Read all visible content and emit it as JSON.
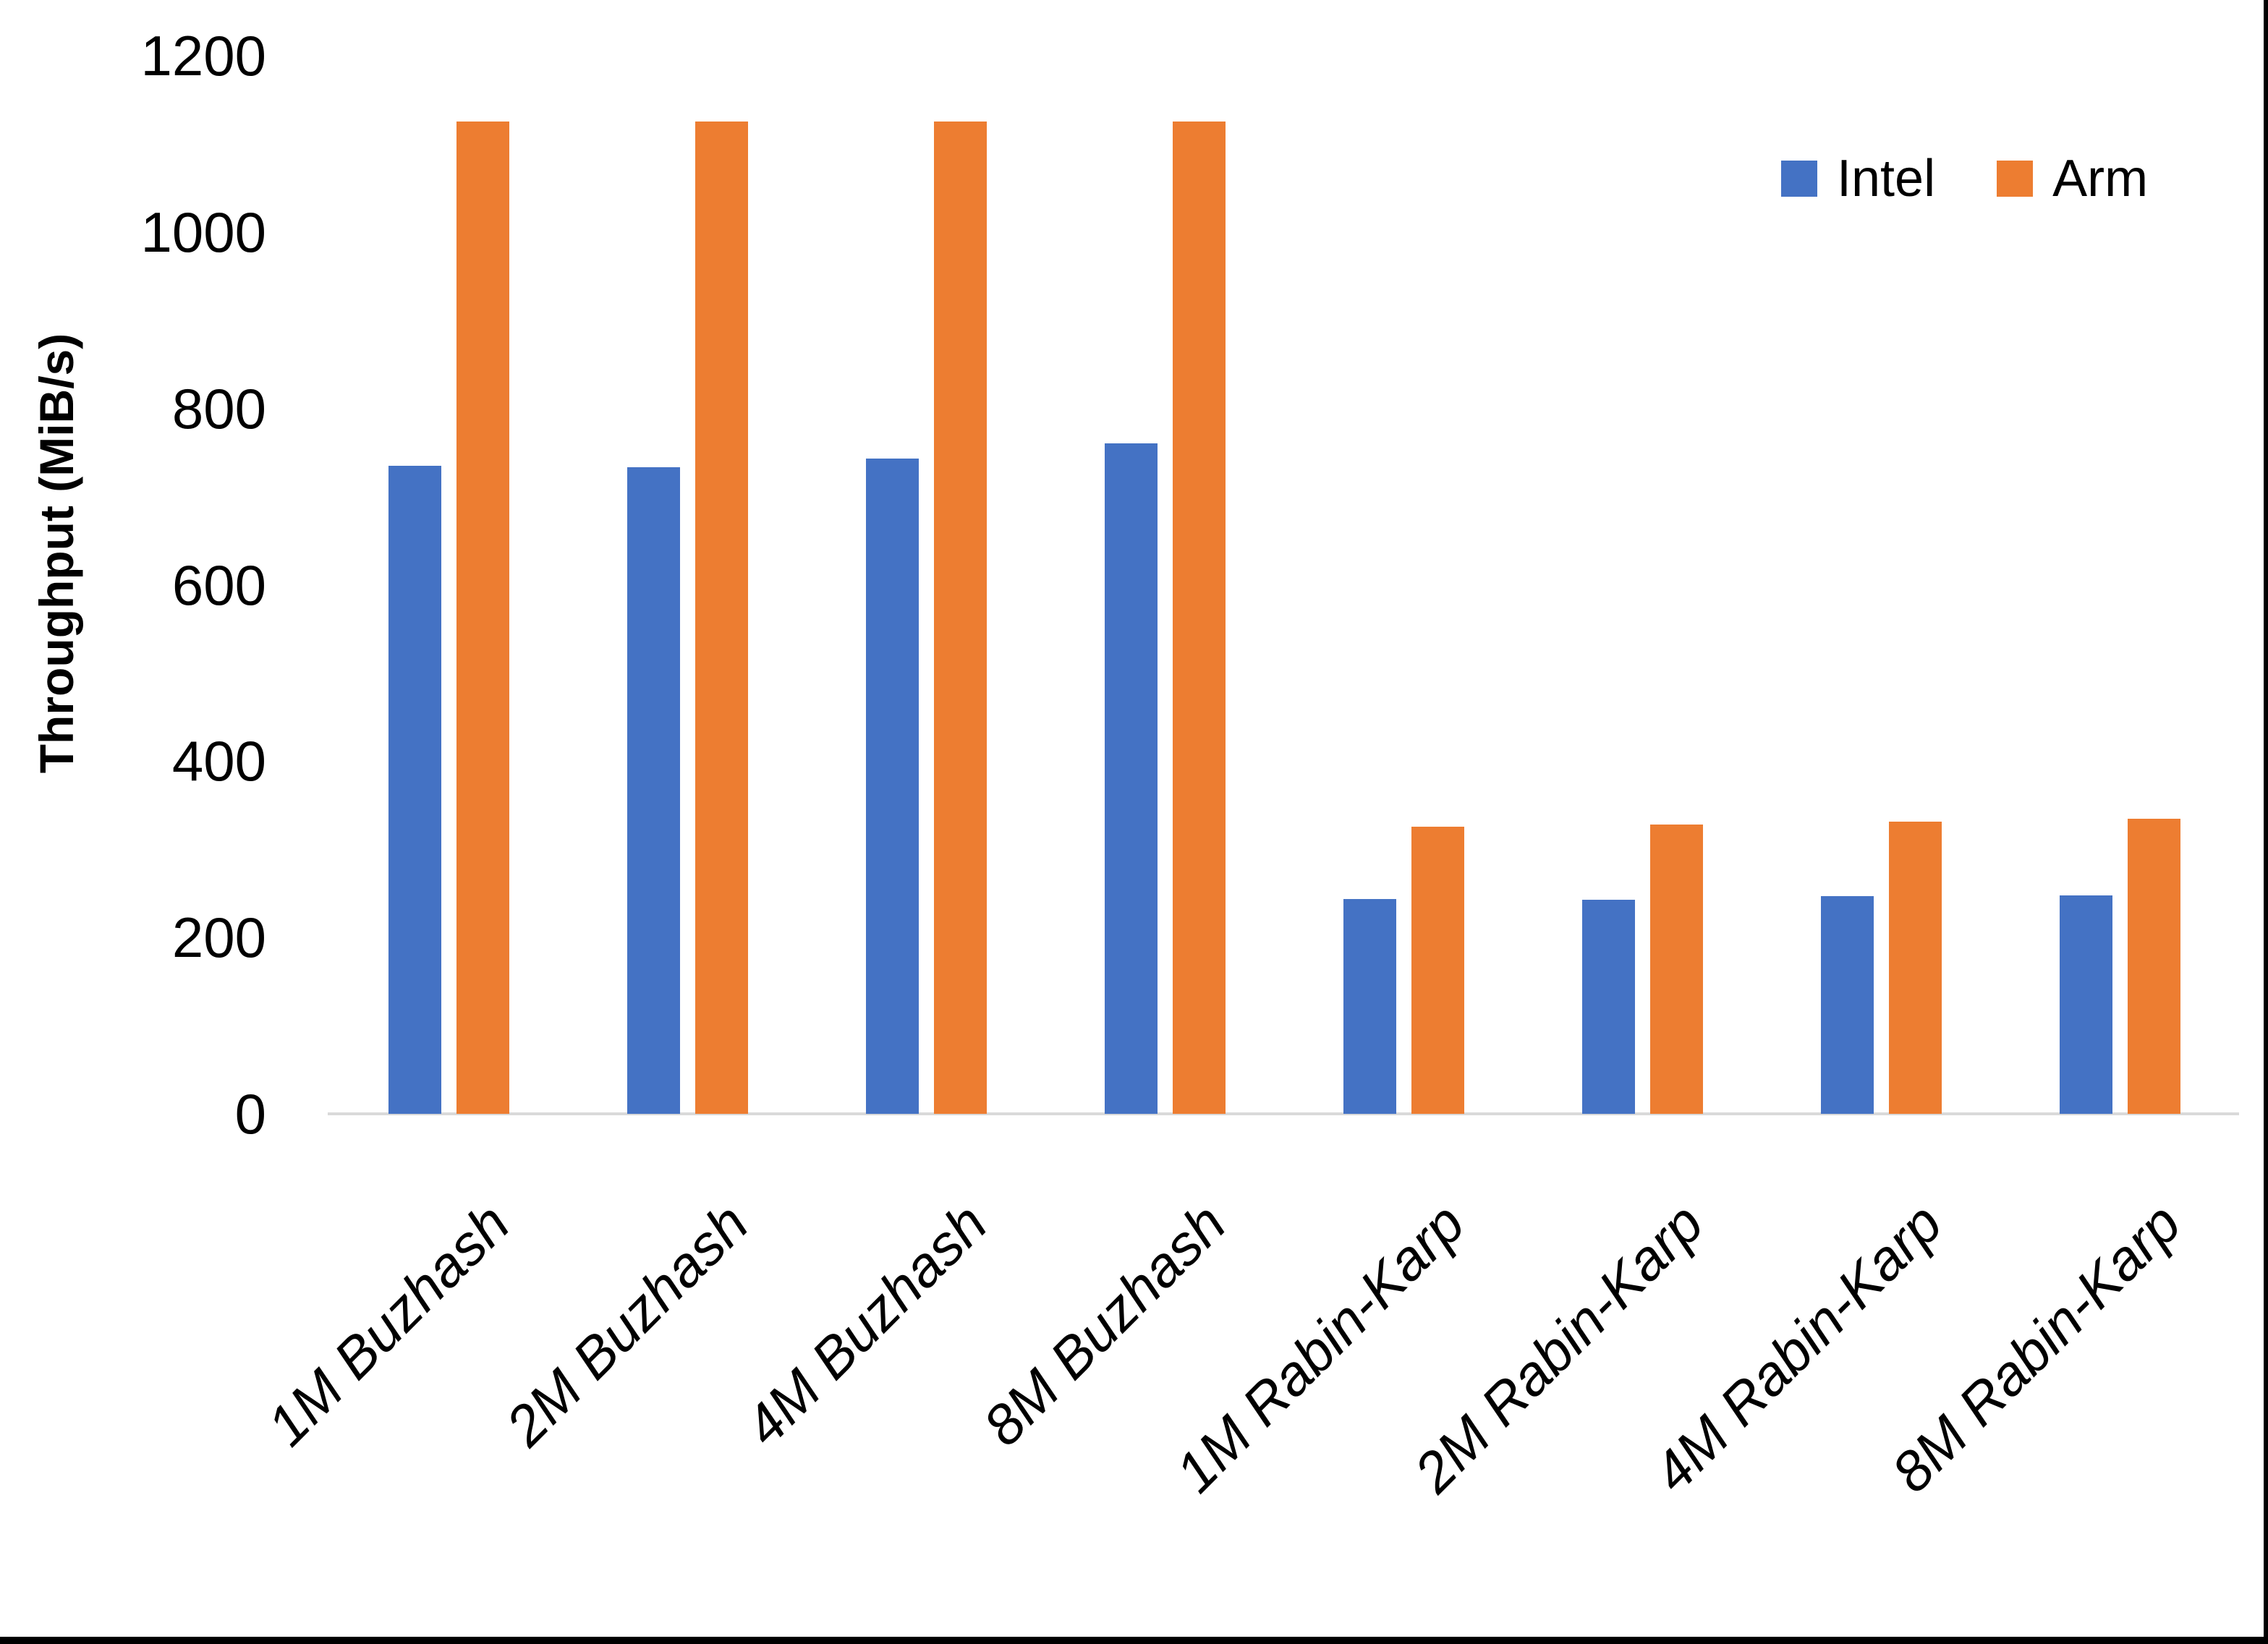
{
  "chart_data": {
    "type": "bar",
    "title": "",
    "xlabel": "",
    "ylabel": "Throughput (MiB/s)",
    "ylim": [
      0,
      1200
    ],
    "yticks": [
      0,
      200,
      400,
      600,
      800,
      1000,
      1200
    ],
    "grid": false,
    "legend_position": "top-right",
    "categories": [
      "1M Buzhash",
      "2M Buzhash",
      "4M Buzhash",
      "8M Buzhash",
      "1M Rabin-Karp",
      "2M Rabin-Karp",
      "4M Rabin-Karp",
      "8M Rabin-Karp"
    ],
    "series": [
      {
        "name": "Intel",
        "color": "#4472C4",
        "values": [
          735,
          733,
          743,
          760,
          244,
          243,
          247,
          248
        ]
      },
      {
        "name": "Arm",
        "color": "#ED7D31",
        "values": [
          1125,
          1125,
          1125,
          1125,
          326,
          328,
          331,
          335
        ]
      }
    ]
  },
  "axis": {
    "baseline_color": "#d9d9d9",
    "text_color": "#000000"
  },
  "frame": {
    "border_color": "#000000"
  }
}
